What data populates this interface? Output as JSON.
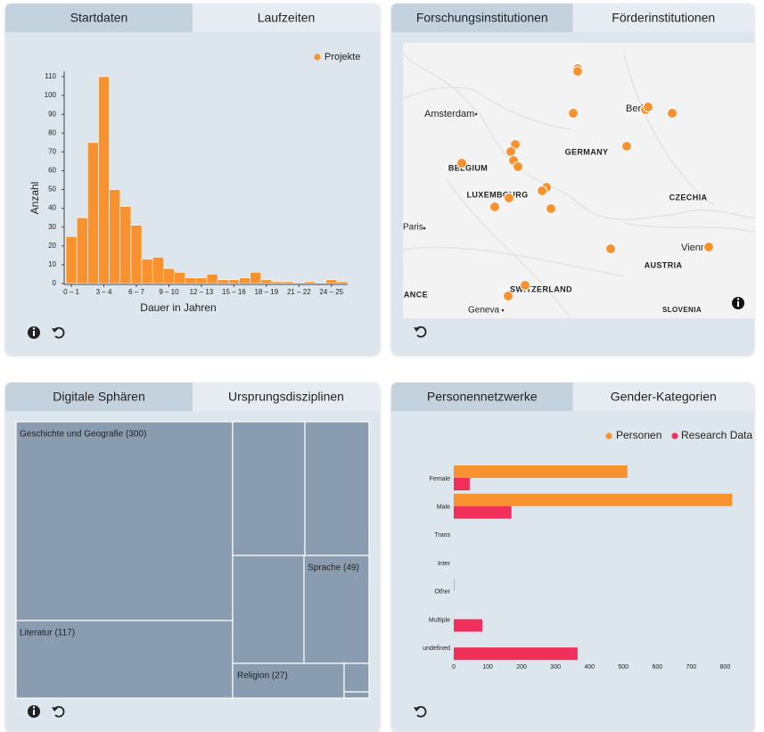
{
  "panels": [
    {
      "tabs": [
        "Startdaten",
        "Laufzeiten"
      ],
      "chart": {
        "type": "bar",
        "xlabel": "Dauer in Jahren",
        "ylabel": "Anzahl",
        "categories": [
          "0 – 1",
          null,
          null,
          "3 – 4",
          null,
          null,
          "6 – 7",
          null,
          null,
          "9 – 10",
          null,
          null,
          "12 – 13",
          null,
          null,
          "15 – 16",
          null,
          null,
          "18 – 19",
          null,
          null,
          "21 – 22",
          null,
          null,
          "24 – 25",
          null
        ],
        "series": [
          {
            "name": "Projekte",
            "color": "#f7922e",
            "values": [
              25,
              35,
              75,
              110,
              50,
              41,
              31,
              13,
              14,
              8,
              6,
              3,
              3,
              5,
              2,
              2,
              3,
              6,
              2,
              1,
              1,
              0,
              1,
              0,
              2,
              1
            ]
          }
        ],
        "ylim": [
          0,
          110
        ],
        "yticks": [
          0,
          10,
          20,
          30,
          40,
          50,
          60,
          70,
          80,
          90,
          100,
          110
        ]
      }
    },
    {
      "tabs": [
        "Forschungsinstitutionen",
        "Förderinstitutionen"
      ],
      "map": {
        "labels": [
          "Amsterdam",
          "Berlin",
          "GERMANY",
          "BELGIUM",
          "LUXEMBOURG",
          "CZECHIA",
          "Paris",
          "Vienna",
          "AUSTRIA",
          "SWITZERLAND",
          "FRANCE",
          "Geneva",
          "SLOVENIA"
        ]
      }
    },
    {
      "tabs": [
        "Digitale Sphären",
        "Ursprungsdisziplinen"
      ],
      "treemap": {
        "tiles": [
          "Geschichte und Geografie (300)",
          "Literatur (117)",
          "Sprache (49)",
          "Religion (27)"
        ]
      }
    },
    {
      "tabs": [
        "Personennetzwerke",
        "Gender-Kategorien"
      ],
      "chart": {
        "type": "hbar",
        "categories": [
          "Female",
          "Male",
          "Trans",
          "Inter",
          "Other",
          "Multiple",
          "undefined"
        ],
        "series": [
          {
            "name": "Personen",
            "color": "#f7922e",
            "values": [
              512,
              821,
              0,
              0,
              2,
              0,
              0
            ]
          },
          {
            "name": "Research Data",
            "color": "#f0305a",
            "values": [
              47,
              170,
              0,
              0,
              0,
              84,
              365
            ]
          }
        ],
        "xlim": [
          0,
          820
        ],
        "xticks": [
          0,
          100,
          200,
          300,
          400,
          500,
          600,
          700,
          800
        ]
      }
    }
  ]
}
